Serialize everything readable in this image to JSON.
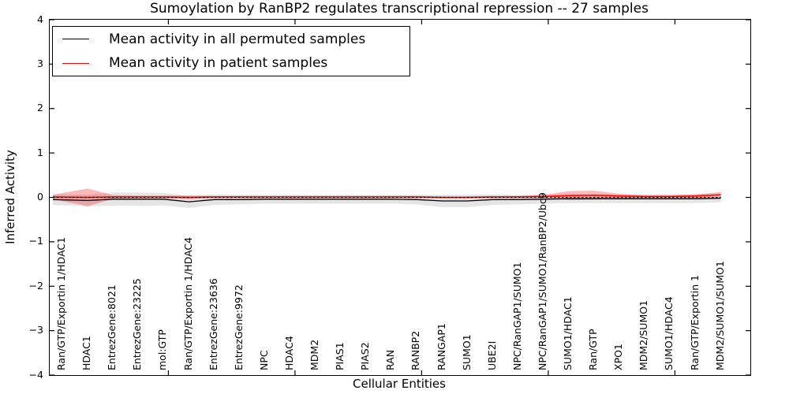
{
  "figure": {
    "title": "Sumoylation by RanBP2 regulates transcriptional repression -- 27 samples",
    "xlabel": "Cellular Entities",
    "ylabel": "Inferred Activity"
  },
  "legend": {
    "entries": [
      {
        "label": "Mean activity in all permuted samples",
        "color": "#000000"
      },
      {
        "label": "Mean activity in patient samples",
        "color": "#ff0000"
      }
    ]
  },
  "chart_data": {
    "type": "line",
    "title": "Sumoylation by RanBP2 regulates transcriptional repression -- 27 samples",
    "xlabel": "Cellular Entities",
    "ylabel": "Inferred Activity",
    "ylim": [
      -4,
      4
    ],
    "yticks": [
      4,
      3,
      2,
      1,
      0,
      -1,
      -2,
      -3,
      -4
    ],
    "grid": false,
    "legend_position": "upper left",
    "reference_line": {
      "y": 0,
      "style": "dotted",
      "color": "#000000"
    },
    "categories": [
      "Ran/GTP/Exportin 1/HDAC1",
      "HDAC1",
      "EntrezGene:8021",
      "EntrezGene:23225",
      "mol:GTP",
      "Ran/GTP/Exportin 1/HDAC4",
      "EntrezGene:23636",
      "EntrezGene:9972",
      "NPC",
      "HDAC4",
      "MDM2",
      "PIAS1",
      "PIAS2",
      "RAN",
      "RANBP2",
      "RANGAP1",
      "SUMO1",
      "UBE2I",
      "NPC/RanGAP1/SUMO1",
      "NPC/RanGAP1/SUMO1/RanBP2/Ubc9",
      "SUMO1/HDAC1",
      "Ran/GTP",
      "XPO1",
      "MDM2/SUMO1",
      "SUMO1/HDAC4",
      "Ran/GTP/Exportin 1",
      "MDM2/SUMO1/SUMO1"
    ],
    "series": [
      {
        "name": "Mean activity in all permuted samples",
        "color": "#000000",
        "style": "solid",
        "values": [
          -0.05,
          -0.07,
          -0.04,
          -0.04,
          -0.04,
          -0.1,
          -0.05,
          -0.05,
          -0.04,
          -0.04,
          -0.04,
          -0.04,
          -0.04,
          -0.04,
          -0.05,
          -0.08,
          -0.08,
          -0.05,
          -0.05,
          -0.04,
          -0.03,
          -0.03,
          -0.03,
          -0.03,
          -0.03,
          -0.03,
          -0.02
        ],
        "band_halfwidth": [
          0.12,
          0.13,
          0.15,
          0.15,
          0.14,
          0.14,
          0.12,
          0.11,
          0.1,
          0.1,
          0.1,
          0.1,
          0.1,
          0.1,
          0.11,
          0.14,
          0.14,
          0.12,
          0.11,
          0.1,
          0.1,
          0.1,
          0.1,
          0.1,
          0.1,
          0.1,
          0.09
        ],
        "band_color": "rgba(0,0,0,0.10)"
      },
      {
        "name": "Mean activity in patient samples",
        "color": "#ff0000",
        "style": "solid",
        "values": [
          0.01,
          0.0,
          0.01,
          0.01,
          0.01,
          0.0,
          0.01,
          0.01,
          0.01,
          0.01,
          0.01,
          0.01,
          0.01,
          0.01,
          0.01,
          0.0,
          0.0,
          0.01,
          0.01,
          0.02,
          0.04,
          0.05,
          0.03,
          0.02,
          0.02,
          0.03,
          0.06
        ],
        "band_halfwidth": [
          0.05,
          0.2,
          0.04,
          0.03,
          0.03,
          0.04,
          0.02,
          0.02,
          0.02,
          0.02,
          0.02,
          0.02,
          0.02,
          0.02,
          0.02,
          0.02,
          0.02,
          0.02,
          0.02,
          0.04,
          0.1,
          0.1,
          0.05,
          0.03,
          0.03,
          0.04,
          0.06
        ],
        "band_color": "rgba(255,0,0,0.28)"
      }
    ]
  }
}
